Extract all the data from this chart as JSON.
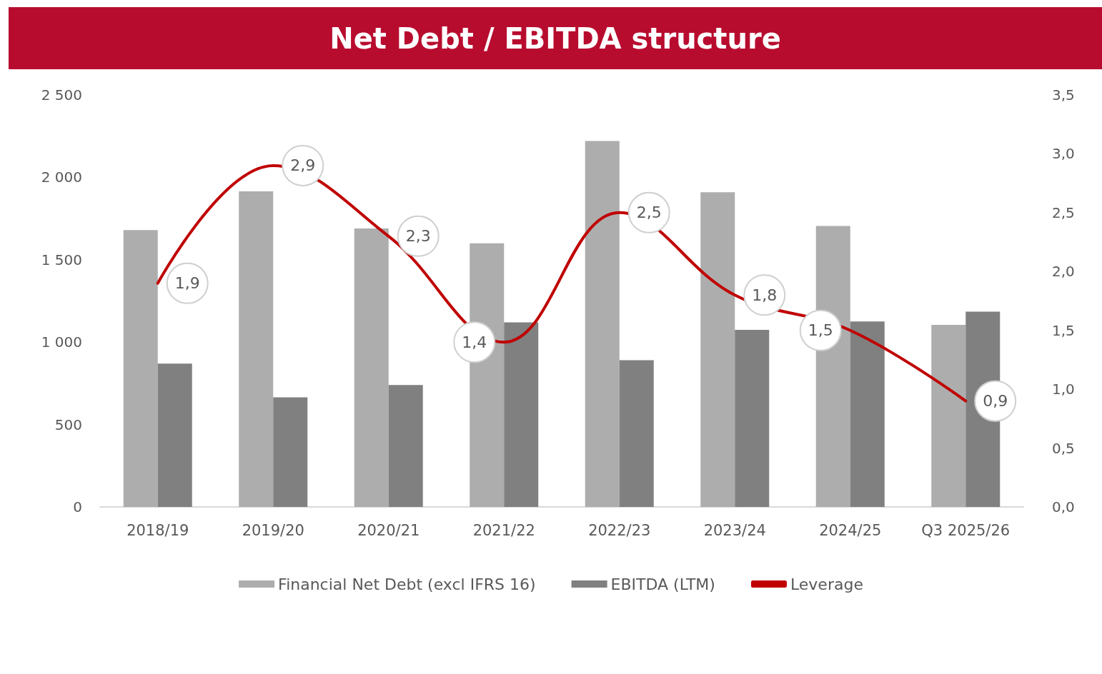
{
  "chart_data": {
    "type": "bar",
    "title": "Net Debt / EBITDA structure",
    "categories": [
      "2018/19",
      "2019/20",
      "2020/21",
      "2021/22",
      "2022/23",
      "2023/24",
      "2024/25",
      "Q3 2025/26"
    ],
    "series": [
      {
        "name": "Financial Net Debt (excl IFRS 16)",
        "color": "#adadad",
        "values": [
          1680,
          1915,
          1690,
          1600,
          2220,
          1910,
          1705,
          1105
        ]
      },
      {
        "name": "EBITDA (LTM)",
        "color": "#808080",
        "values": [
          870,
          665,
          740,
          1120,
          890,
          1075,
          1125,
          1185
        ]
      },
      {
        "name": "Leverage",
        "type": "line",
        "axis": "y2",
        "color": "#c00000",
        "values": [
          1.9,
          2.9,
          2.3,
          1.4,
          2.5,
          1.8,
          1.5,
          0.9
        ],
        "value_labels": [
          "1,9",
          "2,9",
          "2,3",
          "1,4",
          "2,5",
          "1,8",
          "1,5",
          "0,9"
        ]
      }
    ],
    "ylim": [
      0,
      2500
    ],
    "yticks": [
      0,
      500,
      {
        "value": 1000,
        "label": "1 000"
      },
      {
        "value": 1500,
        "label": "1 500"
      },
      {
        "value": 2000,
        "label": "2 000"
      },
      {
        "value": 2500,
        "label": "2 500"
      }
    ],
    "y2lim": [
      0,
      3.5
    ],
    "y2ticks": [
      {
        "value": 0,
        "label": "0,0"
      },
      {
        "value": 0.5,
        "label": "0,5"
      },
      {
        "value": 1,
        "label": "1,0"
      },
      {
        "value": 1.5,
        "label": "1,5"
      },
      {
        "value": 2,
        "label": "2,0"
      },
      {
        "value": 2.5,
        "label": "2,5"
      },
      {
        "value": 3,
        "label": "3,0"
      },
      {
        "value": 3.5,
        "label": "3,5"
      }
    ],
    "legend": "bottom",
    "marker": "none",
    "line_style": "solid",
    "grid": false
  }
}
